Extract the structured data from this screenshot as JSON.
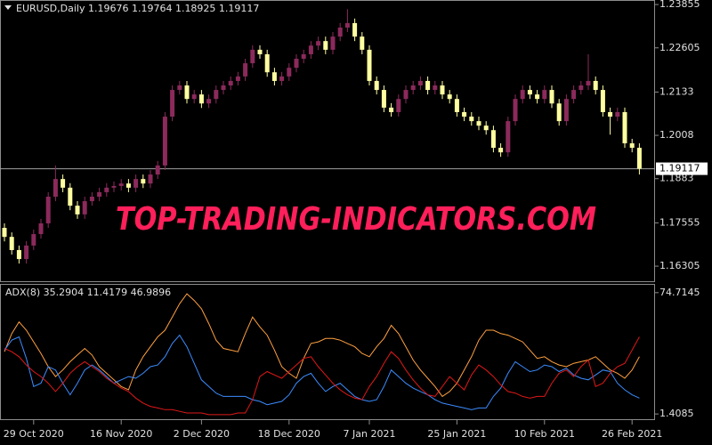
{
  "chart_data": [
    {
      "type": "candlestick",
      "title": "EURUSD,Daily  1.19676 1.19764 1.18925 1.19117",
      "open": [
        1.1741,
        1.1715,
        1.1677,
        1.1651,
        1.169,
        1.1723,
        1.1754,
        1.1831,
        1.1882,
        1.1857,
        1.1805,
        1.178,
        1.1818,
        1.1831,
        1.1844,
        1.1857,
        1.1862,
        1.1869,
        1.1857,
        1.1882,
        1.1869,
        1.1895,
        1.1921,
        1.2062,
        1.2139,
        1.2152,
        1.2113,
        1.2126,
        1.21,
        1.2113,
        1.2139,
        1.2152,
        1.2165,
        1.2178,
        1.2216,
        1.2255,
        1.2242,
        1.219,
        1.2165,
        1.2178,
        1.2203,
        1.2229,
        1.2242,
        1.2267,
        1.228,
        1.2255,
        1.2293,
        1.2319,
        1.2332,
        1.2293,
        1.2255,
        1.2165,
        1.2139,
        1.2088,
        1.2075,
        1.2113,
        1.2139,
        1.2152,
        1.2165,
        1.2139,
        1.2152,
        1.2126,
        1.2113,
        1.2075,
        1.2062,
        1.2049,
        1.2036,
        1.2023,
        1.1972,
        1.1959,
        1.2049,
        1.2113,
        1.2139,
        1.2126,
        1.2113,
        1.2139,
        1.21,
        1.2049,
        1.2113,
        1.2139,
        1.2152,
        1.2165,
        1.2139,
        1.2075,
        1.2062,
        1.2075,
        1.1985,
        1.1972
      ],
      "high": [
        1.1754,
        1.1728,
        1.169,
        1.1703,
        1.1736,
        1.1767,
        1.1844,
        1.1921,
        1.1895,
        1.187,
        1.1818,
        1.1831,
        1.1844,
        1.1857,
        1.187,
        1.1875,
        1.1882,
        1.1882,
        1.1895,
        1.1895,
        1.1908,
        1.1934,
        1.2075,
        1.2152,
        1.2165,
        1.2165,
        1.2139,
        1.2139,
        1.2126,
        1.2152,
        1.2165,
        1.2178,
        1.2191,
        1.2229,
        1.2268,
        1.2268,
        1.2255,
        1.2203,
        1.2191,
        1.2216,
        1.2242,
        1.2255,
        1.228,
        1.2293,
        1.2293,
        1.2306,
        1.2332,
        1.2372,
        1.2345,
        1.2306,
        1.2268,
        1.2178,
        1.2152,
        1.2101,
        1.2126,
        1.2152,
        1.2165,
        1.2178,
        1.2178,
        1.2165,
        1.2165,
        1.2139,
        1.2126,
        1.2088,
        1.2075,
        1.2062,
        1.2049,
        1.2036,
        1.1985,
        1.2062,
        1.2126,
        1.2152,
        1.2152,
        1.2139,
        1.2152,
        1.2152,
        1.2113,
        1.2126,
        1.2152,
        1.2165,
        1.2242,
        1.2178,
        1.2152,
        1.2088,
        1.2088,
        1.2088,
        1.1998,
        1.1985
      ],
      "low": [
        1.1702,
        1.1664,
        1.1638,
        1.1638,
        1.1677,
        1.171,
        1.1741,
        1.1818,
        1.1844,
        1.1792,
        1.1767,
        1.1767,
        1.1805,
        1.1818,
        1.1831,
        1.1844,
        1.1849,
        1.1844,
        1.1844,
        1.1856,
        1.1856,
        1.1882,
        1.1908,
        1.2049,
        1.2126,
        1.21,
        1.21,
        1.2087,
        1.2087,
        1.21,
        1.2126,
        1.2139,
        1.2152,
        1.2165,
        1.2203,
        1.2229,
        1.2177,
        1.2152,
        1.2152,
        1.2165,
        1.219,
        1.2216,
        1.2229,
        1.2254,
        1.2242,
        1.2242,
        1.228,
        1.2306,
        1.228,
        1.2242,
        1.2152,
        1.2126,
        1.2075,
        1.2062,
        1.2062,
        1.21,
        1.2126,
        1.2139,
        1.2126,
        1.2126,
        1.2113,
        1.21,
        1.2062,
        1.2049,
        1.2036,
        1.2023,
        1.201,
        1.1959,
        1.1946,
        1.1946,
        1.2036,
        1.21,
        1.2113,
        1.21,
        1.21,
        1.2087,
        1.2036,
        1.2036,
        1.21,
        1.2126,
        1.2139,
        1.2126,
        1.2062,
        1.201,
        1.2049,
        1.1972,
        1.1959,
        1.1895
      ],
      "close": [
        1.1715,
        1.1677,
        1.1651,
        1.169,
        1.1723,
        1.1754,
        1.1831,
        1.1882,
        1.1857,
        1.1805,
        1.178,
        1.1818,
        1.1831,
        1.1844,
        1.1857,
        1.1862,
        1.1869,
        1.1857,
        1.1882,
        1.1869,
        1.1895,
        1.1921,
        1.2062,
        1.2139,
        1.2152,
        1.2113,
        1.2126,
        1.21,
        1.2113,
        1.2139,
        1.2152,
        1.2165,
        1.2178,
        1.2216,
        1.2255,
        1.2242,
        1.219,
        1.2165,
        1.2178,
        1.2203,
        1.2229,
        1.2242,
        1.2267,
        1.228,
        1.2255,
        1.2293,
        1.2319,
        1.2332,
        1.2293,
        1.2255,
        1.2165,
        1.2139,
        1.2088,
        1.2075,
        1.2113,
        1.2139,
        1.2152,
        1.2165,
        1.2139,
        1.2152,
        1.2126,
        1.2113,
        1.2075,
        1.2062,
        1.2049,
        1.2036,
        1.2023,
        1.1972,
        1.1959,
        1.2049,
        1.2113,
        1.2139,
        1.2126,
        1.2113,
        1.2139,
        1.21,
        1.2049,
        1.2113,
        1.2139,
        1.2152,
        1.2165,
        1.2139,
        1.2075,
        1.2062,
        1.2075,
        1.1985,
        1.1972,
        1.1912
      ],
      "up_color": "#8b2a5b",
      "down_color": "#ffffa0",
      "ylim": [
        1.1587,
        1.2396
      ],
      "yticks": [
        1.23855,
        1.22605,
        1.2133,
        1.2008,
        1.1883,
        1.17555,
        1.16305
      ],
      "current_price": 1.19117
    },
    {
      "type": "line",
      "title": "ADX(8) 35.2904 11.4179 46.9896",
      "categories": [
        null,
        null,
        null,
        null,
        "29 Oct 2020",
        null,
        null,
        null,
        null,
        null,
        null,
        null,
        null,
        null,
        null,
        null,
        "16 Nov 2020",
        null,
        null,
        null,
        null,
        null,
        null,
        null,
        null,
        null,
        null,
        "2 Dec 2020",
        null,
        null,
        null,
        null,
        null,
        null,
        null,
        null,
        null,
        null,
        null,
        "18 Dec 2020",
        null,
        null,
        null,
        null,
        null,
        null,
        null,
        null,
        null,
        null,
        "7 Jan 2021",
        null,
        null,
        null,
        null,
        null,
        null,
        null,
        null,
        null,
        null,
        null,
        "25 Jan 2021",
        null,
        null,
        null,
        null,
        null,
        null,
        null,
        null,
        null,
        null,
        null,
        "10 Feb 2021",
        null,
        null,
        null,
        null,
        null,
        null,
        null,
        null,
        null,
        null,
        null,
        "26 Feb 2021",
        null
      ],
      "series": [
        {
          "color": "#ffa040",
          "values": [
            39,
            50,
            57,
            52,
            45,
            38,
            30,
            24,
            28,
            33,
            37,
            41,
            37,
            30,
            26,
            22,
            18,
            16,
            28,
            36,
            42,
            48,
            52,
            60,
            68,
            74,
            70,
            65,
            56,
            46,
            41,
            40,
            39,
            50,
            60,
            54,
            49,
            40,
            30,
            26,
            23,
            35,
            44,
            45,
            47,
            47,
            46,
            44,
            42,
            38,
            36,
            42,
            47,
            55,
            50,
            42,
            34,
            28,
            23,
            18,
            12,
            15,
            20,
            28,
            36,
            46,
            52,
            52,
            50,
            49,
            47,
            45,
            40,
            35,
            36,
            33,
            31,
            30,
            32,
            33,
            34,
            36,
            32,
            28,
            26,
            23,
            28,
            36
          ]
        },
        {
          "color": "#3c8cff",
          "values": [
            40,
            46,
            48,
            35,
            18,
            20,
            30,
            28,
            20,
            13,
            20,
            28,
            31,
            28,
            24,
            20,
            22,
            24,
            23,
            26,
            30,
            31,
            36,
            44,
            49,
            42,
            32,
            22,
            18,
            14,
            12,
            12,
            12,
            12,
            10,
            9,
            7,
            8,
            9,
            13,
            20,
            24,
            26,
            20,
            15,
            18,
            20,
            16,
            12,
            10,
            9,
            10,
            18,
            28,
            24,
            20,
            17,
            15,
            13,
            10,
            8,
            7,
            6,
            5,
            4,
            5,
            5,
            12,
            17,
            26,
            33,
            30,
            27,
            28,
            31,
            30,
            27,
            29,
            25,
            23,
            22,
            25,
            28,
            27,
            20,
            16,
            13,
            11
          ]
        },
        {
          "color": "#e01818",
          "values": [
            41,
            39,
            36,
            31,
            27,
            24,
            20,
            15,
            20,
            26,
            30,
            33,
            30,
            27,
            23,
            20,
            17,
            15,
            11,
            8,
            6,
            5,
            4,
            4,
            3,
            2,
            2,
            2,
            1,
            1,
            1,
            1,
            2,
            2,
            10,
            24,
            27,
            25,
            23,
            27,
            31,
            35,
            36,
            30,
            25,
            20,
            16,
            13,
            11,
            10,
            18,
            24,
            32,
            39,
            35,
            28,
            22,
            17,
            13,
            12,
            18,
            24,
            20,
            16,
            25,
            31,
            28,
            24,
            19,
            15,
            14,
            12,
            11,
            12,
            12,
            20,
            26,
            28,
            24,
            30,
            34,
            18,
            20,
            26,
            30,
            32,
            40,
            48
          ]
        }
      ],
      "ylim": [
        -1.75,
        79.45
      ],
      "yticks": [
        74.7145,
        1.4085
      ]
    }
  ],
  "watermark": "TOP-TRADING-INDICATORS.COM"
}
